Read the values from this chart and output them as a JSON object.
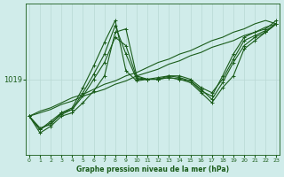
{
  "bg_color": "#d0ecea",
  "grid_color": "#b8d8d4",
  "line_color": "#1a5c1a",
  "title": "Graphe pression niveau de la mer (hPa)",
  "ylabel_label": "1019",
  "ylabel_value": 1019,
  "x_min": 0,
  "x_max": 23,
  "ymin": 1014.5,
  "ymax": 1023.5,
  "series": [
    [
      1016.8,
      1015.8,
      1016.2,
      1016.8,
      1017.0,
      1017.6,
      1018.3,
      1019.2,
      1021.8,
      1022.0,
      1019.2,
      1019.0,
      1019.0,
      1019.1,
      1019.0,
      1018.8,
      1018.2,
      1017.6,
      1018.5,
      1019.2,
      1020.8,
      1021.3,
      1021.8,
      1022.3
    ],
    [
      1016.8,
      1016.0,
      1016.5,
      1017.0,
      1017.3,
      1018.5,
      1019.8,
      1021.2,
      1022.5,
      1019.5,
      1018.9,
      1019.0,
      1019.0,
      1019.2,
      1019.1,
      1018.9,
      1018.3,
      1018.0,
      1019.2,
      1020.5,
      1021.5,
      1021.8,
      1022.0,
      1022.5
    ],
    [
      1016.8,
      1016.0,
      1016.4,
      1016.9,
      1017.2,
      1018.2,
      1019.3,
      1020.5,
      1022.2,
      1020.5,
      1019.0,
      1019.0,
      1019.0,
      1019.1,
      1019.0,
      1018.9,
      1018.4,
      1017.8,
      1018.8,
      1020.0,
      1021.0,
      1021.5,
      1021.8,
      1022.3
    ],
    [
      1016.8,
      1016.1,
      1016.3,
      1017.0,
      1017.2,
      1018.0,
      1019.0,
      1020.0,
      1021.5,
      1021.0,
      1019.1,
      1019.0,
      1019.1,
      1019.2,
      1019.2,
      1019.0,
      1018.5,
      1018.2,
      1019.0,
      1020.2,
      1021.3,
      1021.6,
      1021.9,
      1022.3
    ]
  ],
  "straight_series": [
    [
      1016.8,
      1017.1,
      1017.3,
      1017.6,
      1017.9,
      1018.1,
      1018.4,
      1018.7,
      1018.9,
      1019.2,
      1019.4,
      1019.7,
      1020.0,
      1020.2,
      1020.5,
      1020.7,
      1021.0,
      1021.3,
      1021.5,
      1021.8,
      1022.0,
      1022.3,
      1022.5,
      1022.3
    ],
    [
      1016.8,
      1017.0,
      1017.2,
      1017.5,
      1017.7,
      1018.0,
      1018.2,
      1018.4,
      1018.7,
      1018.9,
      1019.2,
      1019.4,
      1019.6,
      1019.9,
      1020.1,
      1020.4,
      1020.6,
      1020.9,
      1021.1,
      1021.3,
      1021.6,
      1021.8,
      1022.1,
      1022.3
    ]
  ]
}
